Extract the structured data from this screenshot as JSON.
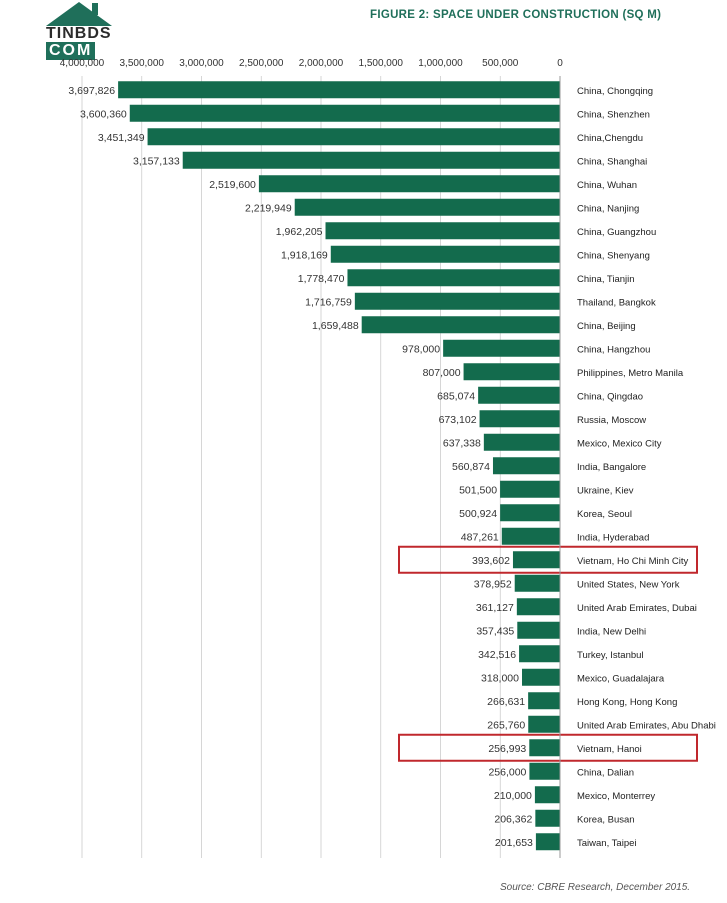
{
  "title": "FIGURE 2: SPACE UNDER CONSTRUCTION (SQ M)",
  "source": "Source: CBRE Research, December 2015.",
  "logo": {
    "line1": "TINBDS",
    "line2": "COM",
    "icon": "house-roof-icon"
  },
  "colors": {
    "bar": "#136b4d",
    "highlight": "#c0282d",
    "title": "#1f6f5a",
    "grid": "#cccccc"
  },
  "chart_data": {
    "type": "bar",
    "orientation": "horizontal",
    "title": "FIGURE 2: SPACE UNDER CONSTRUCTION (SQ M)",
    "xlim": [
      0,
      4000000
    ],
    "x_ticks": [
      0,
      500000,
      1000000,
      1500000,
      2000000,
      2500000,
      3000000,
      3500000,
      4000000
    ],
    "x_tick_labels": [
      "0",
      "500,000",
      "1,000,000",
      "1,500,000",
      "2,000,000",
      "2,500,000",
      "3,000,000",
      "3,500,000",
      "4,000,000"
    ],
    "categories": [
      "China, Chongqing",
      "China, Shenzhen",
      "China,Chengdu",
      "China, Shanghai",
      "China, Wuhan",
      "China, Nanjing",
      "China, Guangzhou",
      "China, Shenyang",
      "China, Tianjin",
      "Thailand, Bangkok",
      "China, Beijing",
      "China, Hangzhou",
      "Philippines, Metro Manila",
      "China, Qingdao",
      "Russia, Moscow",
      "Mexico, Mexico City",
      "India, Bangalore",
      "Ukraine, Kiev",
      "Korea, Seoul",
      "India, Hyderabad",
      "Vietnam, Ho Chi Minh City",
      "United States, New York",
      "United Arab Emirates, Dubai",
      "India, New Delhi",
      "Turkey, Istanbul",
      "Mexico, Guadalajara",
      "Hong Kong, Hong Kong",
      "United Arab Emirates, Abu Dhabi",
      "Vietnam, Hanoi",
      "China, Dalian",
      "Mexico, Monterrey",
      "Korea, Busan",
      "Taiwan, Taipei"
    ],
    "values": [
      3697826,
      3600360,
      3451349,
      3157133,
      2519600,
      2219949,
      1962205,
      1918169,
      1778470,
      1716759,
      1659488,
      978000,
      807000,
      685074,
      673102,
      637338,
      560874,
      501500,
      500924,
      487261,
      393602,
      378952,
      361127,
      357435,
      342516,
      318000,
      266631,
      265760,
      256993,
      256000,
      210000,
      206362,
      201653
    ],
    "value_labels": [
      "3,697,826",
      "3,600,360",
      "3,451,349",
      "3,157,133",
      "2,519,600",
      "2,219,949",
      "1,962,205",
      "1,918,169",
      "1,778,470",
      "1,716,759",
      "1,659,488",
      "978,000",
      "807,000",
      "685,074",
      "673,102",
      "637,338",
      "560,874",
      "501,500",
      "500,924",
      "487,261",
      "393,602",
      "378,952",
      "361,127",
      "357,435",
      "342,516",
      "318,000",
      "266,631",
      "265,760",
      "256,993",
      "256,000",
      "210,000",
      "206,362",
      "201,653"
    ],
    "highlighted": [
      "Vietnam, Ho Chi Minh City",
      "Vietnam, Hanoi"
    ],
    "grid": true,
    "xlabel": "",
    "ylabel": ""
  }
}
